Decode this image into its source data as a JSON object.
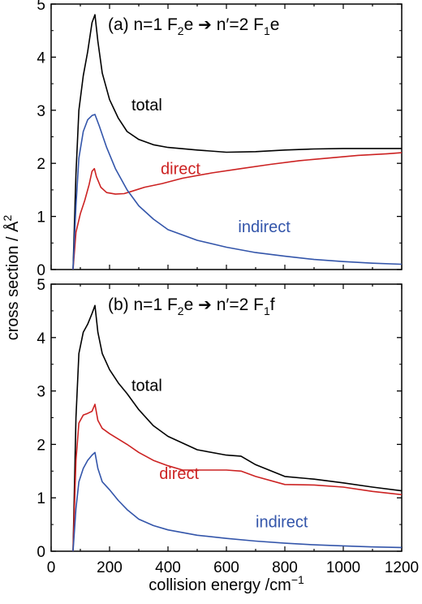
{
  "chart_data": [
    {
      "type": "line",
      "panel_label": "(a)",
      "title_parts": {
        "pre": "n=1 F",
        "sub1": "2",
        "mid": "e",
        "arrow": "➔",
        "post": " n′=2 F",
        "sub2": "1",
        "end": "e"
      },
      "xlim": [
        0,
        1200
      ],
      "ylim": [
        0,
        5
      ],
      "yticks": [
        "0",
        "1",
        "2",
        "3",
        "4",
        "5"
      ],
      "xticks": [],
      "label_positions": {
        "total": [
          275,
          3.0
        ],
        "direct": [
          375,
          1.8
        ],
        "indirect": [
          640,
          0.7
        ]
      },
      "series": [
        {
          "name": "total",
          "color": "#000000",
          "x": [
            75,
            85,
            95,
            110,
            125,
            140,
            150,
            160,
            175,
            200,
            230,
            260,
            300,
            350,
            400,
            500,
            600,
            700,
            800,
            900,
            1000,
            1100,
            1200
          ],
          "y": [
            0,
            1.8,
            3.0,
            3.65,
            4.1,
            4.65,
            4.8,
            4.3,
            3.7,
            3.2,
            2.85,
            2.6,
            2.45,
            2.35,
            2.3,
            2.25,
            2.21,
            2.22,
            2.25,
            2.27,
            2.28,
            2.28,
            2.28
          ]
        },
        {
          "name": "direct",
          "color": "#cc2222",
          "x": [
            75,
            85,
            100,
            115,
            130,
            140,
            148,
            155,
            170,
            190,
            220,
            250,
            280,
            320,
            380,
            450,
            550,
            650,
            750,
            850,
            950,
            1050,
            1150,
            1200
          ],
          "y": [
            0,
            0.7,
            1.05,
            1.3,
            1.6,
            1.85,
            1.9,
            1.75,
            1.55,
            1.45,
            1.42,
            1.43,
            1.48,
            1.55,
            1.62,
            1.72,
            1.82,
            1.9,
            1.98,
            2.05,
            2.1,
            2.15,
            2.18,
            2.2
          ]
        },
        {
          "name": "indirect",
          "color": "#3355aa",
          "x": [
            75,
            85,
            95,
            110,
            125,
            140,
            150,
            165,
            190,
            220,
            260,
            300,
            350,
            400,
            500,
            600,
            700,
            800,
            900,
            1000,
            1100,
            1200
          ],
          "y": [
            0,
            1.2,
            2.1,
            2.6,
            2.82,
            2.9,
            2.92,
            2.7,
            2.3,
            1.9,
            1.5,
            1.2,
            0.95,
            0.75,
            0.55,
            0.42,
            0.32,
            0.25,
            0.19,
            0.15,
            0.12,
            0.1
          ]
        }
      ]
    },
    {
      "type": "line",
      "panel_label": "(b)",
      "title_parts": {
        "pre": "n=1 F",
        "sub1": "2",
        "mid": "e",
        "arrow": "➔",
        "post": " n′=2 F",
        "sub2": "1",
        "end": "f"
      },
      "xlim": [
        0,
        1200
      ],
      "ylim": [
        0,
        5
      ],
      "yticks": [
        "0",
        "1",
        "2",
        "3",
        "4",
        "5"
      ],
      "xticks": [
        "0",
        "200",
        "400",
        "600",
        "800",
        "1000",
        "1200"
      ],
      "xlabel_parts": {
        "text": "collision energy /cm",
        "sup": "−1"
      },
      "label_positions": {
        "total": [
          275,
          3.0
        ],
        "direct": [
          370,
          1.35
        ],
        "indirect": [
          700,
          0.45
        ]
      },
      "series": [
        {
          "name": "total",
          "color": "#000000",
          "x": [
            75,
            85,
            95,
            110,
            125,
            140,
            150,
            160,
            175,
            200,
            230,
            260,
            300,
            350,
            400,
            500,
            600,
            650,
            700,
            800,
            900,
            1000,
            1100,
            1200
          ],
          "y": [
            0,
            2.5,
            3.7,
            4.1,
            4.25,
            4.45,
            4.6,
            4.1,
            3.7,
            3.4,
            3.15,
            2.95,
            2.65,
            2.35,
            2.15,
            1.9,
            1.8,
            1.78,
            1.62,
            1.4,
            1.35,
            1.28,
            1.2,
            1.13
          ]
        },
        {
          "name": "direct",
          "color": "#cc2222",
          "x": [
            75,
            85,
            95,
            110,
            125,
            140,
            150,
            160,
            175,
            200,
            230,
            260,
            300,
            350,
            400,
            450,
            500,
            600,
            650,
            700,
            800,
            900,
            1000,
            1100,
            1200
          ],
          "y": [
            0,
            1.7,
            2.4,
            2.55,
            2.58,
            2.62,
            2.75,
            2.45,
            2.3,
            2.2,
            2.1,
            2.0,
            1.85,
            1.7,
            1.6,
            1.52,
            1.52,
            1.52,
            1.5,
            1.4,
            1.25,
            1.24,
            1.2,
            1.12,
            1.06
          ]
        },
        {
          "name": "indirect",
          "color": "#3355aa",
          "x": [
            75,
            85,
            95,
            110,
            125,
            140,
            150,
            160,
            175,
            200,
            230,
            260,
            300,
            350,
            400,
            500,
            600,
            700,
            800,
            900,
            1000,
            1100,
            1200
          ],
          "y": [
            0,
            0.8,
            1.3,
            1.55,
            1.7,
            1.8,
            1.85,
            1.55,
            1.3,
            1.15,
            0.95,
            0.78,
            0.6,
            0.48,
            0.4,
            0.3,
            0.24,
            0.19,
            0.15,
            0.12,
            0.1,
            0.08,
            0.07
          ]
        }
      ]
    }
  ],
  "shared": {
    "ylabel": "cross section / Å",
    "ylabel_sup": "2"
  }
}
